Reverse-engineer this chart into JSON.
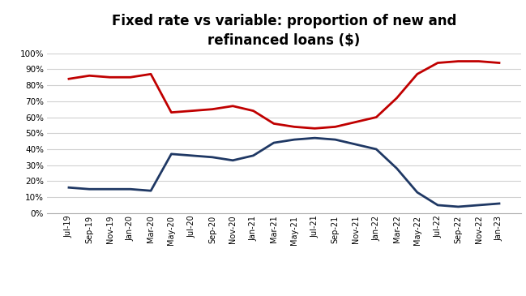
{
  "title": "Fixed rate vs variable: proportion of new and\nrefinanced loans ($)",
  "x_labels": [
    "Jul-19",
    "Sep-19",
    "Nov-19",
    "Jan-20",
    "Mar-20",
    "May-20",
    "Jul-20",
    "Sep-20",
    "Nov-20",
    "Jan-21",
    "Mar-21",
    "May-21",
    "Jul-21",
    "Sep-21",
    "Nov-21",
    "Jan-22",
    "Mar-22",
    "May-22",
    "Jul-22",
    "Sep-22",
    "Nov-22",
    "Jan-23"
  ],
  "variable_line": [
    84,
    86,
    85,
    85,
    87,
    63,
    64,
    65,
    67,
    64,
    56,
    54,
    53,
    54,
    57,
    60,
    72,
    87,
    94,
    95,
    95,
    94
  ],
  "fixed_line": [
    16,
    15,
    15,
    15,
    14,
    37,
    36,
    35,
    33,
    36,
    44,
    46,
    47,
    46,
    43,
    40,
    28,
    13,
    5,
    4,
    5,
    6
  ],
  "variable_color": "#c00000",
  "fixed_color": "#1f3864",
  "ylim": [
    0,
    100
  ],
  "ytick_values": [
    0,
    10,
    20,
    30,
    40,
    50,
    60,
    70,
    80,
    90,
    100
  ],
  "background_color": "#ffffff",
  "grid_color": "#d0d0d0",
  "title_fontsize": 12,
  "line_width": 2.0
}
